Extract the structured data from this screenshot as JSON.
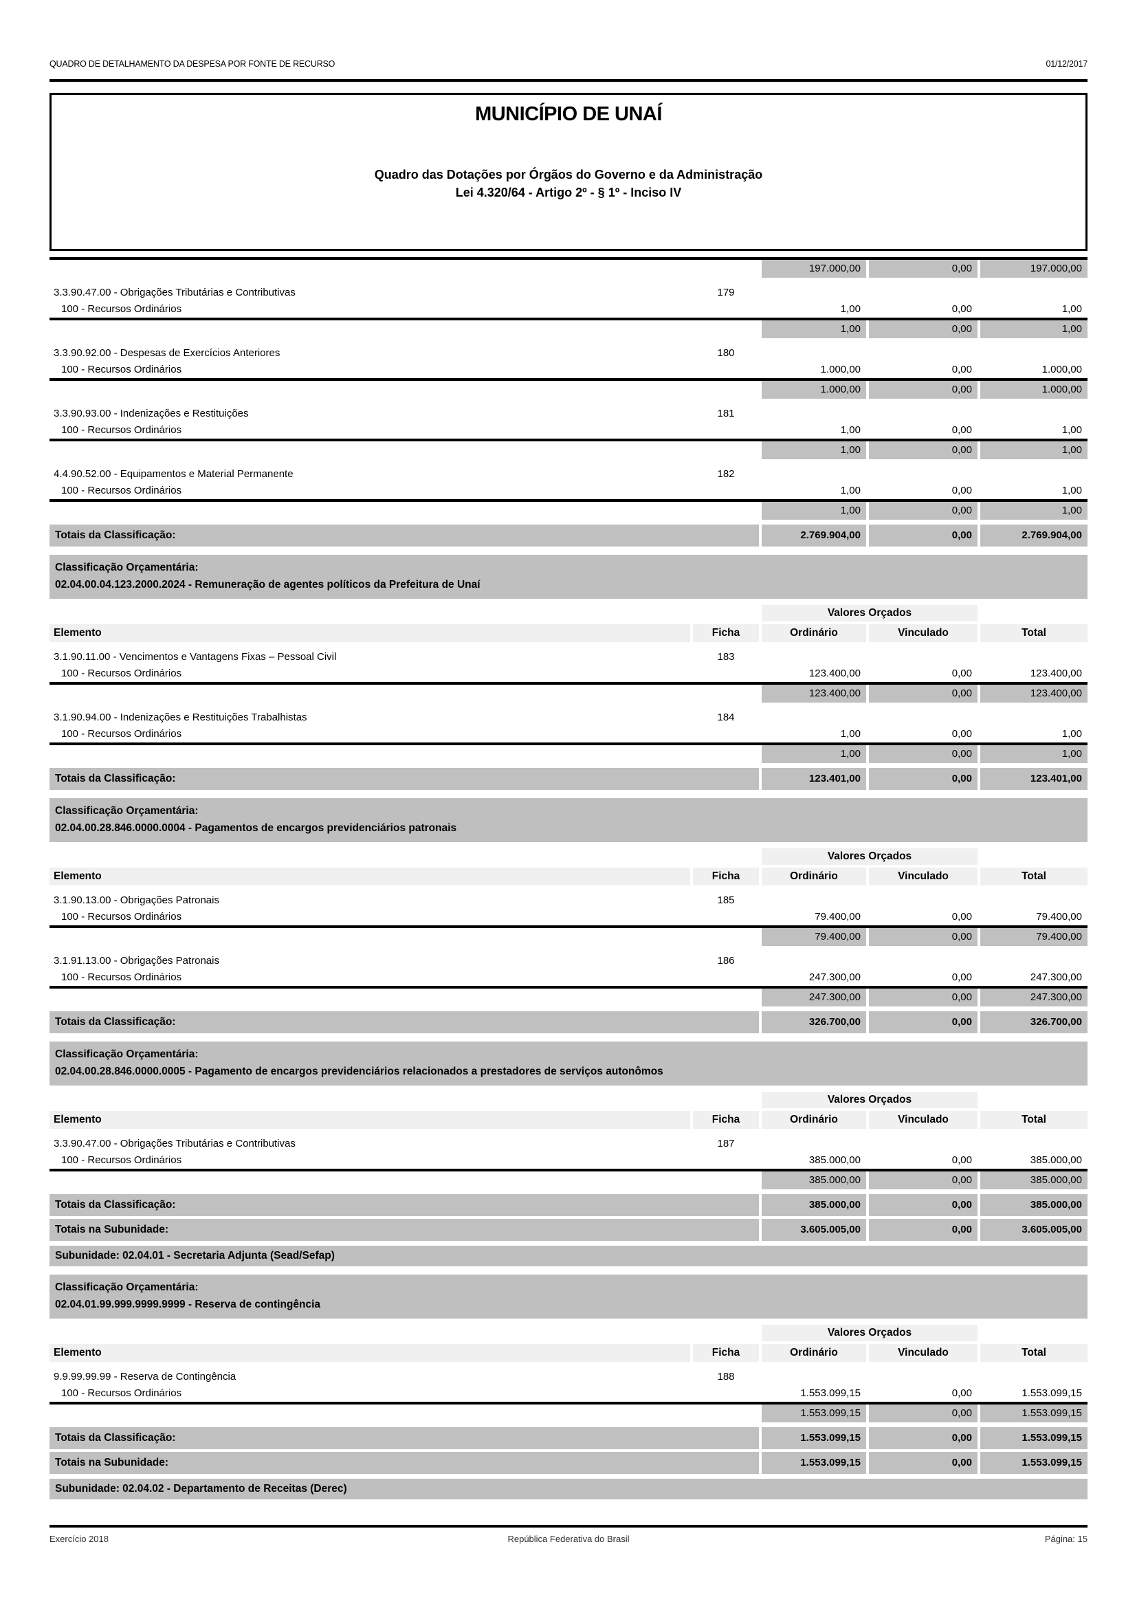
{
  "page": {
    "header_left": "QUADRO DE DETALHAMENTO DA DESPESA POR FONTE DE RECURSO",
    "date": "01/12/2017",
    "title": "MUNICÍPIO DE UNAÍ",
    "subtitle1": "Quadro das Dotações por Órgãos do Governo e da Administração",
    "subtitle2": "Lei 4.320/64 - Artigo 2º - § 1º - Inciso IV",
    "footer_left": "Exercício 2018",
    "footer_center": "República Federativa do Brasil",
    "footer_right": "Página: 15"
  },
  "labels": {
    "classificacao_header": "Classificação Orçamentária:",
    "valores_orcados": "Valores Orçados",
    "col_elemento": "Elemento",
    "col_ficha": "Ficha",
    "col_ordinario": "Ordinário",
    "col_vinculado": "Vinculado",
    "col_total": "Total",
    "totais_classificacao": "Totais da Classificação:",
    "totais_subunidade": "Totais na Subunidade:"
  },
  "colors": {
    "banner_gray": "#bfbfbf",
    "cell_gray": "#c0c0c0",
    "header_gray": "#f0f0f0"
  },
  "sections": [
    {
      "carryover_subtotal": {
        "ord": "197.000,00",
        "vinc": "0,00",
        "tot": "197.000,00"
      },
      "elements": [
        {
          "name": "3.3.90.47.00 - Obrigações Tributárias e Contributivas",
          "ficha": "179",
          "source": "100 - Recursos Ordinários",
          "ord": "1,00",
          "vinc": "0,00",
          "tot": "1,00"
        },
        {
          "name": "3.3.90.92.00 - Despesas de Exercícios Anteriores",
          "ficha": "180",
          "source": "100 - Recursos Ordinários",
          "ord": "1.000,00",
          "vinc": "0,00",
          "tot": "1.000,00"
        },
        {
          "name": "3.3.90.93.00 - Indenizações e Restituições",
          "ficha": "181",
          "source": "100 - Recursos Ordinários",
          "ord": "1,00",
          "vinc": "0,00",
          "tot": "1,00"
        },
        {
          "name": "4.4.90.52.00 - Equipamentos e Material Permanente",
          "ficha": "182",
          "source": "100 - Recursos Ordinários",
          "ord": "1,00",
          "vinc": "0,00",
          "tot": "1,00"
        }
      ],
      "totais": {
        "ord": "2.769.904,00",
        "vinc": "0,00",
        "tot": "2.769.904,00"
      }
    },
    {
      "classificacao": "02.04.00.04.123.2000.2024 - Remuneração de agentes políticos da Prefeitura de Unaí",
      "elements": [
        {
          "name": "3.1.90.11.00 - Vencimentos e Vantagens Fixas – Pessoal Civil",
          "ficha": "183",
          "source": "100 - Recursos Ordinários",
          "ord": "123.400,00",
          "vinc": "0,00",
          "tot": "123.400,00"
        },
        {
          "name": "3.1.90.94.00 - Indenizações e Restituições Trabalhistas",
          "ficha": "184",
          "source": "100 - Recursos Ordinários",
          "ord": "1,00",
          "vinc": "0,00",
          "tot": "1,00"
        }
      ],
      "totais": {
        "ord": "123.401,00",
        "vinc": "0,00",
        "tot": "123.401,00"
      }
    },
    {
      "classificacao": "02.04.00.28.846.0000.0004 - Pagamentos de encargos previdenciários patronais",
      "elements": [
        {
          "name": "3.1.90.13.00 - Obrigações Patronais",
          "ficha": "185",
          "source": "100 - Recursos Ordinários",
          "ord": "79.400,00",
          "vinc": "0,00",
          "tot": "79.400,00"
        },
        {
          "name": "3.1.91.13.00 - Obrigações Patronais",
          "ficha": "186",
          "source": "100 - Recursos Ordinários",
          "ord": "247.300,00",
          "vinc": "0,00",
          "tot": "247.300,00"
        }
      ],
      "totais": {
        "ord": "326.700,00",
        "vinc": "0,00",
        "tot": "326.700,00"
      }
    },
    {
      "classificacao": "02.04.00.28.846.0000.0005 - Pagamento de encargos previdenciários relacionados a prestadores de serviços autonômos",
      "elements": [
        {
          "name": "3.3.90.47.00 - Obrigações Tributárias e Contributivas",
          "ficha": "187",
          "source": "100 - Recursos Ordinários",
          "ord": "385.000,00",
          "vinc": "0,00",
          "tot": "385.000,00"
        }
      ],
      "totais": {
        "ord": "385.000,00",
        "vinc": "0,00",
        "tot": "385.000,00"
      },
      "totais_subunidade": {
        "ord": "3.605.005,00",
        "vinc": "0,00",
        "tot": "3.605.005,00"
      },
      "subunidade": "Subunidade: 02.04.01 - Secretaria Adjunta (Sead/Sefap)"
    },
    {
      "classificacao": "02.04.01.99.999.9999.9999 - Reserva de contingência",
      "elements": [
        {
          "name": "9.9.99.99.99 - Reserva de Contingência",
          "ficha": "188",
          "source": "100 - Recursos Ordinários",
          "ord": "1.553.099,15",
          "vinc": "0,00",
          "tot": "1.553.099,15"
        }
      ],
      "totais": {
        "ord": "1.553.099,15",
        "vinc": "0,00",
        "tot": "1.553.099,15"
      },
      "totais_subunidade": {
        "ord": "1.553.099,15",
        "vinc": "0,00",
        "tot": "1.553.099,15"
      },
      "subunidade": "Subunidade: 02.04.02 - Departamento de Receitas (Derec)"
    }
  ]
}
